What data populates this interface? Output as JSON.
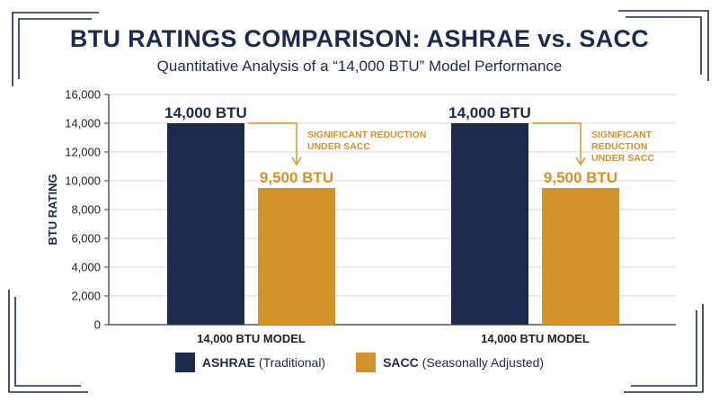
{
  "header": {
    "title": "BTU RATINGS COMPARISON: ASHRAE vs. SACC",
    "subtitle": "Quantitative Analysis of a “14,000 BTU” Model Performance"
  },
  "colors": {
    "navy": "#1c2b4b",
    "gold": "#d4922a",
    "grid": "#d9d9d9"
  },
  "chart_data": {
    "type": "bar",
    "categories": [
      "14,000 BTU MODEL",
      "14,000 BTU MODEL"
    ],
    "series": [
      {
        "name": "ASHRAE",
        "values": [
          14000,
          14000
        ]
      },
      {
        "name": "SACC",
        "values": [
          9500,
          9500
        ]
      }
    ],
    "data_labels": [
      [
        "14,000 BTU",
        "14,000 BTU"
      ],
      [
        "9,500 BTU",
        "9,500 BTU"
      ]
    ],
    "ylabel": "BTU RATING",
    "xlabel": "",
    "ylim": [
      0,
      16000
    ],
    "yticks": [
      0,
      2000,
      4000,
      6000,
      8000,
      10000,
      12000,
      14000,
      16000
    ],
    "ytick_labels": [
      "0",
      "2,000",
      "4,000",
      "6,000",
      "8,000",
      "10,000",
      "12,000",
      "14,000",
      "16,000"
    ],
    "grid": true,
    "annotations": [
      {
        "line1": "SIGNIFICANT REDUCTION",
        "line2": "UNDER SACC"
      },
      {
        "line1": "SIGNIFICANT",
        "line2": "REDUCTION",
        "line3": "UNDER SACC"
      }
    ],
    "legend": {
      "placement": "bottom",
      "items": [
        {
          "name": "ASHRAE",
          "desc": "(Traditional)"
        },
        {
          "name": "SACC",
          "desc": "(Seasonally Adjusted)"
        }
      ]
    }
  }
}
